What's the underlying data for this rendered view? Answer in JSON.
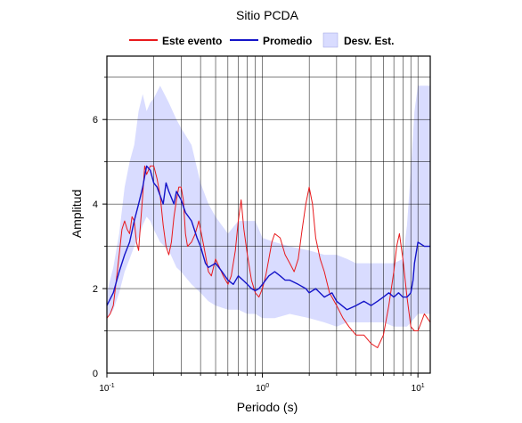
{
  "chart_data": {
    "type": "line",
    "title": "Sitio PCDA",
    "xlabel": "Periodo (s)",
    "ylabel": "Amplitud",
    "x_scale": "log",
    "xlim": [
      0.1,
      12
    ],
    "ylim": [
      0,
      7.5
    ],
    "grid": true,
    "legend_position": "top",
    "x_ticks": [
      {
        "value": 0.1,
        "base": "10",
        "exp": "-1"
      },
      {
        "value": 1,
        "base": "10",
        "exp": "0"
      },
      {
        "value": 10,
        "base": "10",
        "exp": "1"
      }
    ],
    "y_ticks": [
      0,
      2,
      4,
      6
    ],
    "legend": [
      {
        "label": "Este evento",
        "kind": "line",
        "color": "#e8191c"
      },
      {
        "label": "Promedio",
        "kind": "line",
        "color": "#1414c8"
      },
      {
        "label": "Desv. Est.",
        "kind": "patch",
        "color": "#d9dcff"
      }
    ],
    "band": {
      "name": "Desv. Est.",
      "color": "#d9dcff",
      "x": [
        0.1,
        0.11,
        0.12,
        0.13,
        0.14,
        0.15,
        0.16,
        0.17,
        0.18,
        0.19,
        0.2,
        0.22,
        0.25,
        0.28,
        0.3,
        0.35,
        0.4,
        0.45,
        0.5,
        0.6,
        0.7,
        0.8,
        0.9,
        1.0,
        1.2,
        1.5,
        2.0,
        2.5,
        3.0,
        3.5,
        4.0,
        5.0,
        6.0,
        7.0,
        8.0,
        8.5,
        9.0,
        9.5,
        10.0,
        11.0,
        12.0
      ],
      "upper": [
        1.9,
        2.5,
        3.3,
        4.4,
        5.0,
        5.4,
        6.2,
        6.6,
        6.2,
        6.4,
        6.5,
        6.8,
        6.4,
        6.0,
        5.8,
        5.4,
        4.5,
        4.0,
        3.7,
        3.3,
        3.6,
        3.6,
        3.6,
        3.2,
        3.1,
        3.0,
        2.9,
        2.8,
        2.8,
        2.7,
        2.6,
        2.6,
        2.6,
        2.6,
        2.7,
        3.5,
        4.8,
        6.2,
        6.8,
        6.8,
        6.8
      ],
      "lower": [
        1.3,
        1.5,
        1.9,
        2.4,
        2.7,
        3.0,
        3.2,
        3.5,
        3.7,
        3.6,
        3.4,
        3.1,
        2.9,
        2.5,
        2.4,
        2.1,
        1.9,
        1.7,
        1.6,
        1.5,
        1.5,
        1.4,
        1.4,
        1.3,
        1.3,
        1.4,
        1.3,
        1.2,
        1.1,
        1.2,
        1.2,
        1.2,
        1.2,
        1.1,
        1.1,
        1.1,
        1.2,
        1.3,
        1.4,
        1.4,
        1.4
      ]
    },
    "series": [
      {
        "name": "Este evento",
        "color": "#e8191c",
        "x": [
          0.1,
          0.105,
          0.11,
          0.115,
          0.12,
          0.125,
          0.13,
          0.135,
          0.14,
          0.145,
          0.15,
          0.155,
          0.16,
          0.165,
          0.17,
          0.175,
          0.18,
          0.19,
          0.2,
          0.21,
          0.22,
          0.23,
          0.24,
          0.25,
          0.26,
          0.27,
          0.28,
          0.29,
          0.3,
          0.31,
          0.32,
          0.33,
          0.35,
          0.37,
          0.39,
          0.41,
          0.43,
          0.45,
          0.47,
          0.5,
          0.53,
          0.56,
          0.6,
          0.63,
          0.67,
          0.7,
          0.73,
          0.76,
          0.8,
          0.85,
          0.9,
          0.95,
          1.0,
          1.05,
          1.1,
          1.15,
          1.2,
          1.3,
          1.4,
          1.5,
          1.6,
          1.7,
          1.8,
          1.9,
          2.0,
          2.1,
          2.2,
          2.35,
          2.5,
          2.7,
          3.0,
          3.3,
          3.6,
          4.0,
          4.5,
          5.0,
          5.5,
          6.0,
          6.5,
          7.0,
          7.3,
          7.6,
          8.0,
          8.5,
          9.0,
          9.5,
          10.0,
          10.5,
          11.0,
          11.5,
          12.0
        ],
        "y": [
          1.3,
          1.4,
          1.6,
          2.2,
          2.8,
          3.4,
          3.6,
          3.4,
          3.3,
          3.7,
          3.6,
          3.1,
          2.9,
          3.6,
          4.2,
          4.9,
          4.7,
          4.9,
          4.9,
          4.6,
          4.2,
          3.5,
          3.0,
          2.8,
          3.1,
          3.7,
          4.1,
          4.4,
          4.4,
          4.1,
          3.3,
          3.0,
          3.1,
          3.3,
          3.6,
          3.2,
          2.8,
          2.4,
          2.3,
          2.7,
          2.5,
          2.3,
          2.1,
          2.3,
          2.9,
          3.6,
          4.1,
          3.4,
          2.8,
          2.2,
          1.9,
          1.8,
          2.0,
          2.3,
          2.7,
          3.1,
          3.3,
          3.2,
          2.8,
          2.6,
          2.4,
          2.7,
          3.4,
          4.0,
          4.4,
          4.0,
          3.2,
          2.7,
          2.4,
          1.9,
          1.6,
          1.3,
          1.1,
          0.9,
          0.9,
          0.7,
          0.6,
          0.9,
          1.6,
          2.4,
          3.0,
          3.3,
          2.7,
          1.8,
          1.1,
          1.0,
          1.0,
          1.2,
          1.4,
          1.3,
          1.2
        ]
      },
      {
        "name": "Promedio",
        "color": "#1414c8",
        "x": [
          0.1,
          0.11,
          0.12,
          0.13,
          0.14,
          0.15,
          0.16,
          0.17,
          0.18,
          0.19,
          0.2,
          0.21,
          0.22,
          0.23,
          0.24,
          0.25,
          0.27,
          0.28,
          0.3,
          0.32,
          0.35,
          0.38,
          0.4,
          0.43,
          0.45,
          0.5,
          0.55,
          0.6,
          0.65,
          0.7,
          0.75,
          0.8,
          0.85,
          0.9,
          0.95,
          1.0,
          1.1,
          1.2,
          1.3,
          1.4,
          1.5,
          1.7,
          1.9,
          2.0,
          2.2,
          2.5,
          2.8,
          3.0,
          3.5,
          4.0,
          4.5,
          5.0,
          5.5,
          6.0,
          6.5,
          7.0,
          7.5,
          8.0,
          8.5,
          9.0,
          9.3,
          9.5,
          10.0,
          11.0,
          12.0
        ],
        "y": [
          1.6,
          1.9,
          2.4,
          2.8,
          3.1,
          3.6,
          4.0,
          4.4,
          4.9,
          4.8,
          4.5,
          4.4,
          4.2,
          4.0,
          4.5,
          4.3,
          4.0,
          4.3,
          4.1,
          3.8,
          3.6,
          3.2,
          3.0,
          2.6,
          2.5,
          2.6,
          2.4,
          2.2,
          2.1,
          2.3,
          2.2,
          2.1,
          2.0,
          1.95,
          2.0,
          2.1,
          2.3,
          2.4,
          2.3,
          2.2,
          2.2,
          2.1,
          2.0,
          1.9,
          2.0,
          1.8,
          1.9,
          1.7,
          1.5,
          1.6,
          1.7,
          1.6,
          1.7,
          1.8,
          1.9,
          1.8,
          1.9,
          1.8,
          1.8,
          1.9,
          2.2,
          2.6,
          3.1,
          3.0,
          3.0
        ]
      }
    ]
  }
}
